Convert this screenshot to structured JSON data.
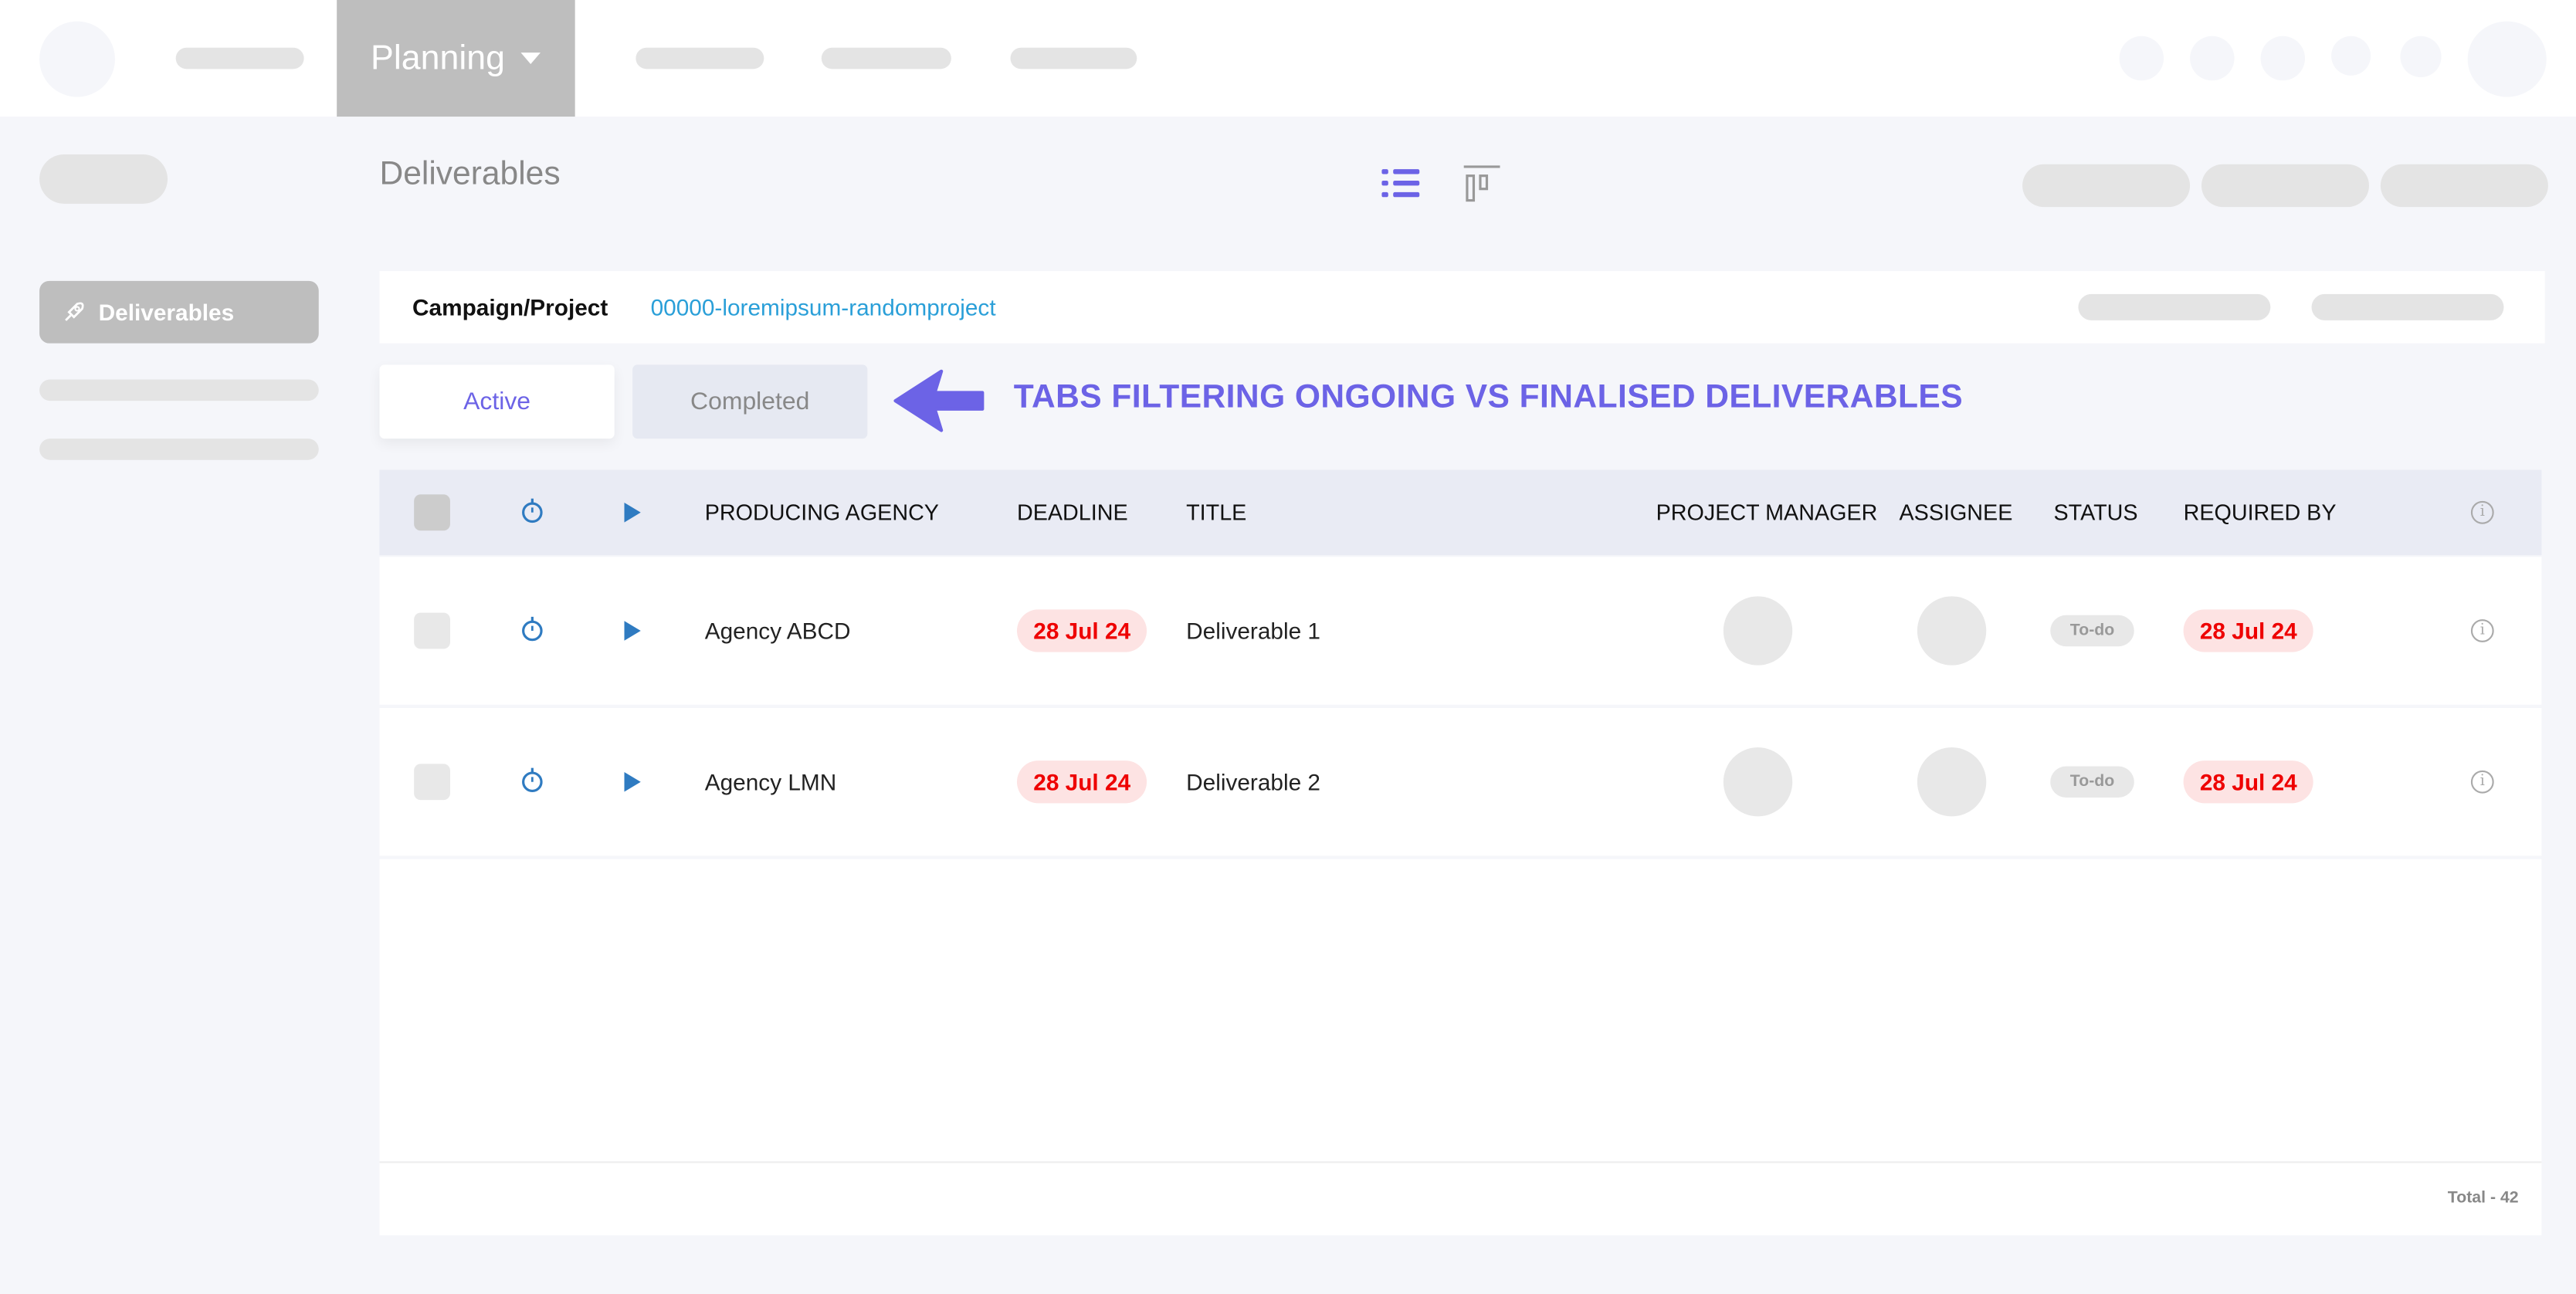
{
  "nav": {
    "active_menu": "Planning"
  },
  "page": {
    "title": "Deliverables"
  },
  "sidebar": {
    "active_item": "Deliverables"
  },
  "filter": {
    "label": "Campaign/Project",
    "value": "00000-loremipsum-randomproject"
  },
  "tabs": [
    {
      "label": "Active",
      "selected": true
    },
    {
      "label": "Completed",
      "selected": false
    }
  ],
  "annotation": "TABS FILTERING ONGOING VS FINALISED DELIVERABLES",
  "table": {
    "columns": [
      "PRODUCING AGENCY",
      "DEADLINE",
      "TITLE",
      "PROJECT MANAGER",
      "ASSIGNEE",
      "STATUS",
      "REQUIRED BY"
    ],
    "rows": [
      {
        "agency": "Agency ABCD",
        "deadline": "28 Jul 24",
        "title": "Deliverable 1",
        "status": "To-do",
        "required_by": "28 Jul 24"
      },
      {
        "agency": "Agency LMN",
        "deadline": "28 Jul 24",
        "title": "Deliverable 2",
        "status": "To-do",
        "required_by": "28 Jul 24"
      }
    ]
  },
  "footer": {
    "total": "Total - 42"
  },
  "colors": {
    "accent": "#6c63e6",
    "link": "#2a9fd8",
    "danger": "#e00000",
    "danger_bg": "#fde3e3",
    "play": "#2f7bc1"
  }
}
